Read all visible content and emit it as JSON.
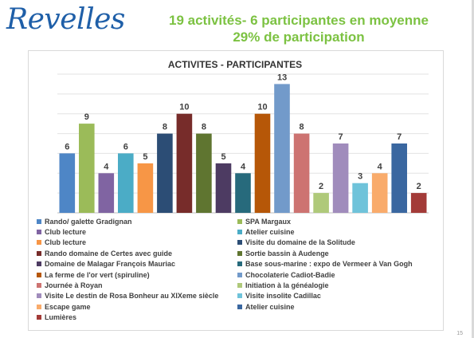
{
  "logo": "Revelles",
  "headline": {
    "line1": "19 activités- 6 participantes en moyenne",
    "line2": "29% de participation"
  },
  "page_number": "15",
  "chart_data": {
    "type": "bar",
    "title": "ACTIVITES -  PARTICIPANTES",
    "xlabel": "",
    "ylabel": "",
    "ylim": [
      0,
      14
    ],
    "grid": true,
    "legend": "bottom",
    "series": [
      {
        "name": "Rando/ galette Gradignan",
        "value": 6,
        "color": "#4e86c6"
      },
      {
        "name": "SPA Margaux",
        "value": 9,
        "color": "#9bbb59"
      },
      {
        "name": "Club lecture",
        "value": 4,
        "color": "#8064a2"
      },
      {
        "name": "Atelier cuisine",
        "value": 6,
        "color": "#4bacc6"
      },
      {
        "name": "Club lecture",
        "value": 5,
        "color": "#f79646"
      },
      {
        "name": "Visite du domaine de la Solitude",
        "value": 8,
        "color": "#2c4d75"
      },
      {
        "name": "Rando domaine de Certes avec guide",
        "value": 10,
        "color": "#772c2a"
      },
      {
        "name": "Sortie bassin à Audenge",
        "value": 8,
        "color": "#5f7530"
      },
      {
        "name": "Domaine de Malagar François Mauriac",
        "value": 5,
        "color": "#4d3b62"
      },
      {
        "name": "Base sous-marine : expo de Vermeer à Van Gogh",
        "value": 4,
        "color": "#276a7c"
      },
      {
        "name": "La ferme de l'or vert (spiruline)",
        "value": 10,
        "color": "#b65708"
      },
      {
        "name": "Chocolaterie Cadiot-Badie",
        "value": 13,
        "color": "#729aca"
      },
      {
        "name": "Journée à Royan",
        "value": 8,
        "color": "#cd7371"
      },
      {
        "name": "Initiation à la généalogie",
        "value": 2,
        "color": "#afc97a"
      },
      {
        "name": "Visite Le destin de Rosa Bonheur au XIXeme siècle",
        "value": 7,
        "color": "#a08cbc"
      },
      {
        "name": "Visite insolite Cadillac",
        "value": 3,
        "color": "#6fc3da"
      },
      {
        "name": "Escape game",
        "value": 4,
        "color": "#f9ab6b"
      },
      {
        "name": "Atelier cuisine",
        "value": 7,
        "color": "#3a67a0"
      },
      {
        "name": "Lumières",
        "value": 2,
        "color": "#a33b38"
      }
    ]
  }
}
